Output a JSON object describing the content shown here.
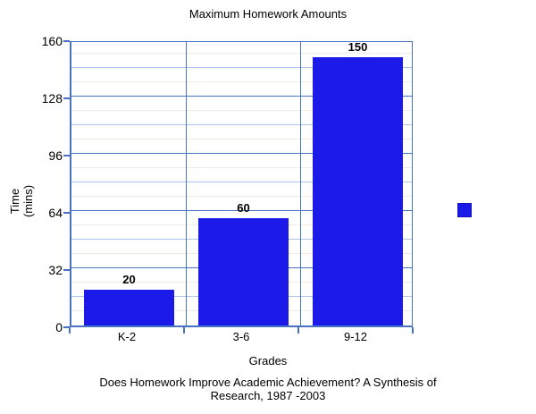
{
  "chart_data": {
    "type": "bar",
    "title": "Maximum Homework Amounts",
    "categories": [
      "K-2",
      "3-6",
      "9-12"
    ],
    "values": [
      20,
      60,
      150
    ],
    "value_labels": [
      "20",
      "60",
      "150"
    ],
    "xlabel": "Grades",
    "ylabel": "Time (mins)",
    "ylabel_lines": [
      "Time",
      "(mins)"
    ],
    "ylim": [
      0,
      160
    ],
    "yticks": [
      160,
      128,
      96,
      64,
      32,
      0
    ],
    "grid": {
      "major_step": 32,
      "minor_step": 16,
      "sub_step": 8,
      "vertical_separators": true
    },
    "legend": {
      "visible": true,
      "label": ""
    },
    "caption_lines": [
      "Does Homework Improve Academic Achievement? A Synthesis of",
      "Research, 1987 -2003"
    ]
  },
  "colors": {
    "bar": "#1c1ae8",
    "frame": "#4a72c4",
    "grid_minor": "#aec7e8",
    "grid_sub": "#f3eae0",
    "text": "#000000",
    "background": "#ffffff"
  }
}
